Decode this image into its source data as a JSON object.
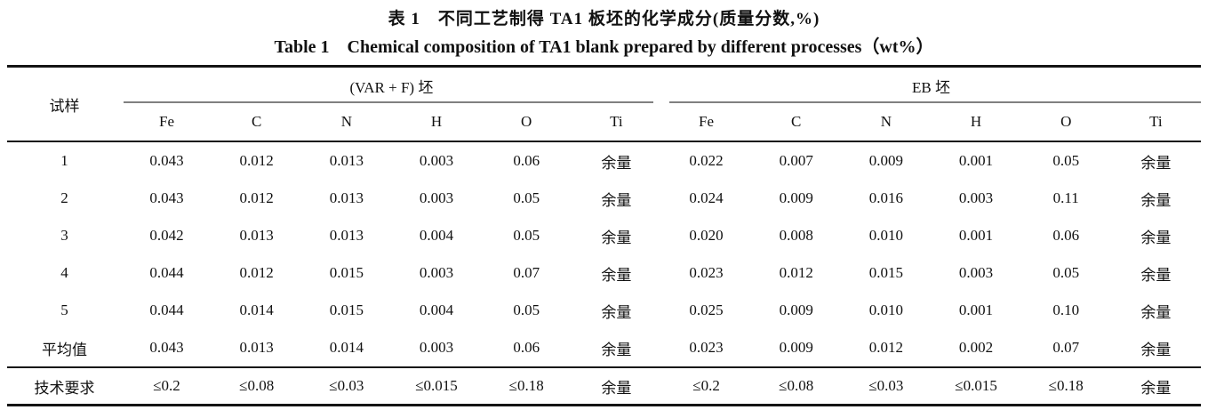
{
  "title": {
    "zh": "表 1　不同工艺制得 TA1 板坯的化学成分(质量分数,%)",
    "en": "Table 1　Chemical composition of TA1 blank prepared by different processes（wt%）"
  },
  "table": {
    "corner_header": "试样",
    "groups": [
      {
        "label": "(VAR + F) 坯",
        "columns": [
          "Fe",
          "C",
          "N",
          "H",
          "O",
          "Ti"
        ]
      },
      {
        "label": "EB 坯",
        "columns": [
          "Fe",
          "C",
          "N",
          "H",
          "O",
          "Ti"
        ]
      }
    ],
    "rows": [
      {
        "label": "1",
        "var_f": [
          "0.043",
          "0.012",
          "0.013",
          "0.003",
          "0.06",
          "余量"
        ],
        "eb": [
          "0.022",
          "0.007",
          "0.009",
          "0.001",
          "0.05",
          "余量"
        ]
      },
      {
        "label": "2",
        "var_f": [
          "0.043",
          "0.012",
          "0.013",
          "0.003",
          "0.05",
          "余量"
        ],
        "eb": [
          "0.024",
          "0.009",
          "0.016",
          "0.003",
          "0.11",
          "余量"
        ]
      },
      {
        "label": "3",
        "var_f": [
          "0.042",
          "0.013",
          "0.013",
          "0.004",
          "0.05",
          "余量"
        ],
        "eb": [
          "0.020",
          "0.008",
          "0.010",
          "0.001",
          "0.06",
          "余量"
        ]
      },
      {
        "label": "4",
        "var_f": [
          "0.044",
          "0.012",
          "0.015",
          "0.003",
          "0.07",
          "余量"
        ],
        "eb": [
          "0.023",
          "0.012",
          "0.015",
          "0.003",
          "0.05",
          "余量"
        ]
      },
      {
        "label": "5",
        "var_f": [
          "0.044",
          "0.014",
          "0.015",
          "0.004",
          "0.05",
          "余量"
        ],
        "eb": [
          "0.025",
          "0.009",
          "0.010",
          "0.001",
          "0.10",
          "余量"
        ]
      },
      {
        "label": "平均值",
        "var_f": [
          "0.043",
          "0.013",
          "0.014",
          "0.003",
          "0.06",
          "余量"
        ],
        "eb": [
          "0.023",
          "0.009",
          "0.012",
          "0.002",
          "0.07",
          "余量"
        ]
      },
      {
        "label": "技术要求",
        "var_f": [
          "≤0.2",
          "≤0.08",
          "≤0.03",
          "≤0.015",
          "≤0.18",
          "余量"
        ],
        "eb": [
          "≤0.2",
          "≤0.08",
          "≤0.03",
          "≤0.015",
          "≤0.18",
          "余量"
        ],
        "requirement": true
      }
    ]
  },
  "colors": {
    "rule": "#141414",
    "group_underline": "#808080",
    "text": "#111111",
    "background": "#ffffff"
  }
}
